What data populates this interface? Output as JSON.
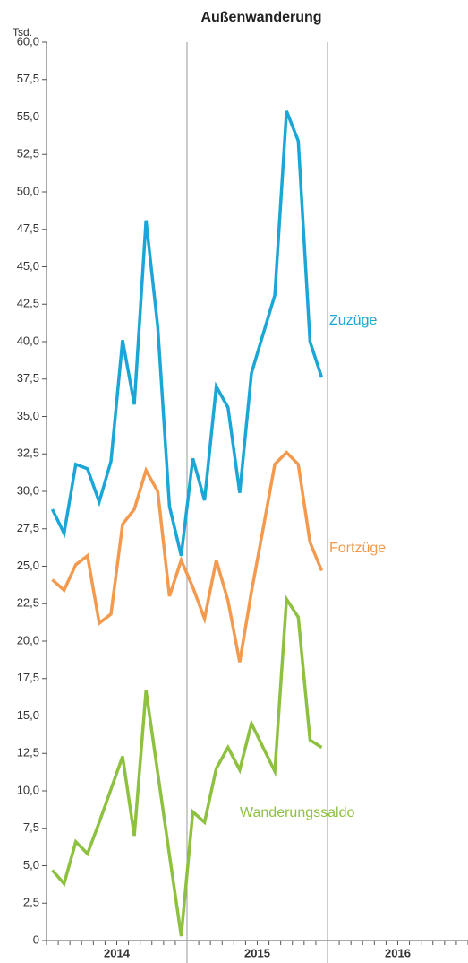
{
  "chart_data": {
    "type": "line",
    "title": "Außenwanderung",
    "y_label": "Tsd.",
    "categories": [
      null,
      null,
      null,
      null,
      null,
      null,
      null,
      null,
      null,
      null,
      null,
      null,
      null,
      null,
      null,
      null,
      null,
      null,
      null,
      null,
      null,
      null,
      null,
      null,
      null,
      null,
      null,
      null,
      null,
      null,
      null,
      null,
      null,
      null,
      null,
      null
    ],
    "year_groups": [
      "2014",
      "2015",
      "2016"
    ],
    "ylim": [
      0,
      60
    ],
    "yticks": [
      0,
      {
        "value": 2.5,
        "label": "2,5"
      },
      {
        "value": 5,
        "label": "5,0"
      },
      {
        "value": 7.5,
        "label": "7,5"
      },
      {
        "value": 10,
        "label": "10,0"
      },
      {
        "value": 12.5,
        "label": "12,5"
      },
      {
        "value": 15,
        "label": "15,0"
      },
      {
        "value": 17.5,
        "label": "17,5"
      },
      {
        "value": 20,
        "label": "20,0"
      },
      {
        "value": 22.5,
        "label": "22,5"
      },
      {
        "value": 25,
        "label": "25,0"
      },
      {
        "value": 27.5,
        "label": "27,5"
      },
      {
        "value": 30,
        "label": "30,0"
      },
      {
        "value": 32.5,
        "label": "32,5"
      },
      {
        "value": 35,
        "label": "35,0"
      },
      {
        "value": 37.5,
        "label": "37,5"
      },
      {
        "value": 40,
        "label": "40,0"
      },
      {
        "value": 42.5,
        "label": "42,5"
      },
      {
        "value": 45,
        "label": "45,0"
      },
      {
        "value": 47.5,
        "label": "47,5"
      },
      {
        "value": 50,
        "label": "50,0"
      },
      {
        "value": 52.5,
        "label": "52,5"
      },
      {
        "value": 55,
        "label": "55,0"
      },
      {
        "value": 57.5,
        "label": "57,5"
      },
      {
        "value": 60,
        "label": "60,0"
      }
    ],
    "series": [
      {
        "name": "Zuzüge",
        "color": "#1aa6d6",
        "values": [
          28.8,
          27.2,
          31.8,
          31.5,
          29.3,
          32.0,
          40.1,
          35.8,
          48.1,
          41.0,
          29.0,
          25.7,
          32.2,
          29.4,
          37.0,
          35.6,
          29.9,
          37.9,
          40.5,
          43.1,
          55.4,
          53.4,
          40.0,
          37.6,
          null,
          null,
          null,
          null,
          null,
          null,
          null,
          null,
          null,
          null,
          null,
          null
        ]
      },
      {
        "name": "Fortzüge",
        "color": "#f39a4e",
        "values": [
          24.1,
          23.4,
          25.1,
          25.7,
          21.2,
          21.8,
          27.8,
          28.8,
          31.4,
          30.0,
          23.0,
          25.4,
          23.6,
          21.5,
          25.4,
          22.7,
          18.6,
          23.3,
          27.5,
          31.8,
          32.6,
          31.8,
          26.6,
          24.7,
          null,
          null,
          null,
          null,
          null,
          null,
          null,
          null,
          null,
          null,
          null,
          null
        ]
      },
      {
        "name": "Wanderungssaldo",
        "color": "#8dc13f",
        "values": [
          4.7,
          3.8,
          6.6,
          5.8,
          7.9,
          10.1,
          12.3,
          7.0,
          16.7,
          11.2,
          5.7,
          0.3,
          8.6,
          7.9,
          11.5,
          12.9,
          11.4,
          14.5,
          12.9,
          11.3,
          22.8,
          21.6,
          13.4,
          12.9,
          null,
          null,
          null,
          null,
          null,
          null,
          null,
          null,
          null,
          null,
          null,
          null
        ]
      }
    ]
  }
}
